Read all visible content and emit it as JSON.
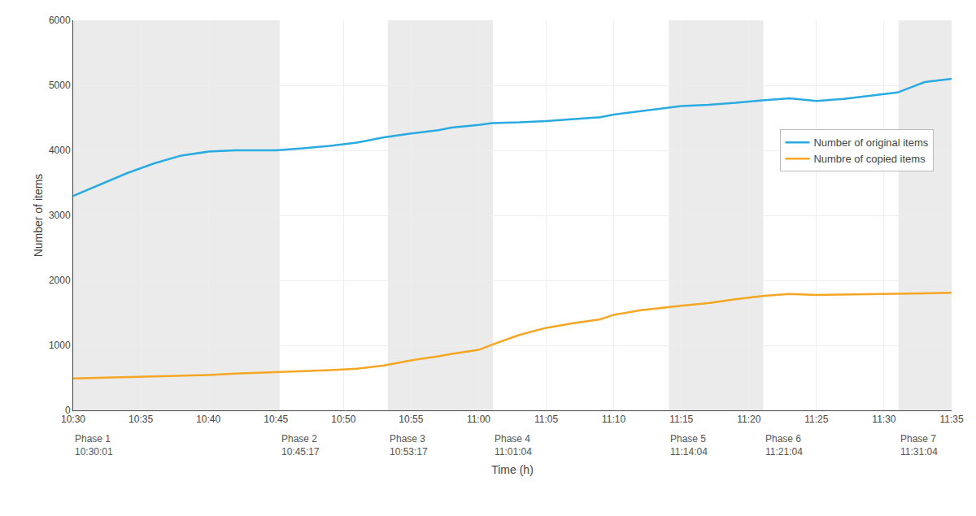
{
  "chart_data": {
    "type": "line",
    "xlabel": "Time (h)",
    "ylabel": "Number of items",
    "x": [
      0,
      2,
      4,
      6,
      8,
      10,
      12,
      14,
      15,
      17,
      19,
      21,
      23,
      25,
      27,
      28,
      30,
      31,
      33,
      35,
      37,
      39,
      40,
      42,
      44,
      45,
      47,
      49,
      51,
      53,
      55,
      57,
      59,
      61,
      63,
      65
    ],
    "series": [
      {
        "name": "Number of original items",
        "color": "#29abe2",
        "values": [
          3300,
          3480,
          3650,
          3800,
          3920,
          3980,
          4000,
          4000,
          4000,
          4030,
          4070,
          4120,
          4200,
          4260,
          4310,
          4350,
          4390,
          4420,
          4430,
          4450,
          4480,
          4510,
          4550,
          4600,
          4650,
          4680,
          4700,
          4730,
          4770,
          4800,
          4760,
          4790,
          4840,
          4890,
          5050,
          5100
        ]
      },
      {
        "name": "Numbre of copied items",
        "color": "#f5a623",
        "values": [
          490,
          500,
          510,
          520,
          535,
          545,
          565,
          580,
          585,
          600,
          620,
          640,
          690,
          770,
          830,
          870,
          930,
          1010,
          1160,
          1270,
          1340,
          1400,
          1470,
          1540,
          1590,
          1610,
          1650,
          1710,
          1760,
          1790,
          1775,
          1780,
          1790,
          1795,
          1800,
          1810
        ]
      }
    ],
    "xlim": [
      0,
      65
    ],
    "xticks": [
      {
        "value": 0,
        "label": "10:30"
      },
      {
        "value": 5,
        "label": "10:35"
      },
      {
        "value": 10,
        "label": "10:40"
      },
      {
        "value": 15,
        "label": "10:45"
      },
      {
        "value": 20,
        "label": "10:50"
      },
      {
        "value": 25,
        "label": "10:55"
      },
      {
        "value": 30,
        "label": "11:00"
      },
      {
        "value": 35,
        "label": "11:05"
      },
      {
        "value": 40,
        "label": "11:10"
      },
      {
        "value": 45,
        "label": "11:15"
      },
      {
        "value": 50,
        "label": "11:20"
      },
      {
        "value": 55,
        "label": "11:25"
      },
      {
        "value": 60,
        "label": "11:30"
      },
      {
        "value": 65,
        "label": "11:35"
      }
    ],
    "ylim": [
      0,
      6000
    ],
    "yticks": [
      0,
      1000,
      2000,
      3000,
      4000,
      5000,
      6000
    ],
    "grid": true,
    "legend": "upper right",
    "phases": [
      {
        "name": "Phase 1",
        "time": "10:30:01",
        "x": 0.0
      },
      {
        "name": "Phase 2",
        "time": "10:45:17",
        "x": 15.28
      },
      {
        "name": "Phase 3",
        "time": "10:53:17",
        "x": 23.28
      },
      {
        "name": "Phase 4",
        "time": "11:01:04",
        "x": 31.07
      },
      {
        "name": "Phase 5",
        "time": "11:14:04",
        "x": 44.07
      },
      {
        "name": "Phase 6",
        "time": "11:21:04",
        "x": 51.07
      },
      {
        "name": "Phase 7",
        "time": "11:31:04",
        "x": 61.07
      }
    ],
    "shaded_regions": [
      {
        "start": 0.0,
        "end": 15.28
      },
      {
        "start": 23.28,
        "end": 31.07
      },
      {
        "start": 44.07,
        "end": 51.07
      },
      {
        "start": 61.07,
        "end": 65.0
      }
    ]
  }
}
